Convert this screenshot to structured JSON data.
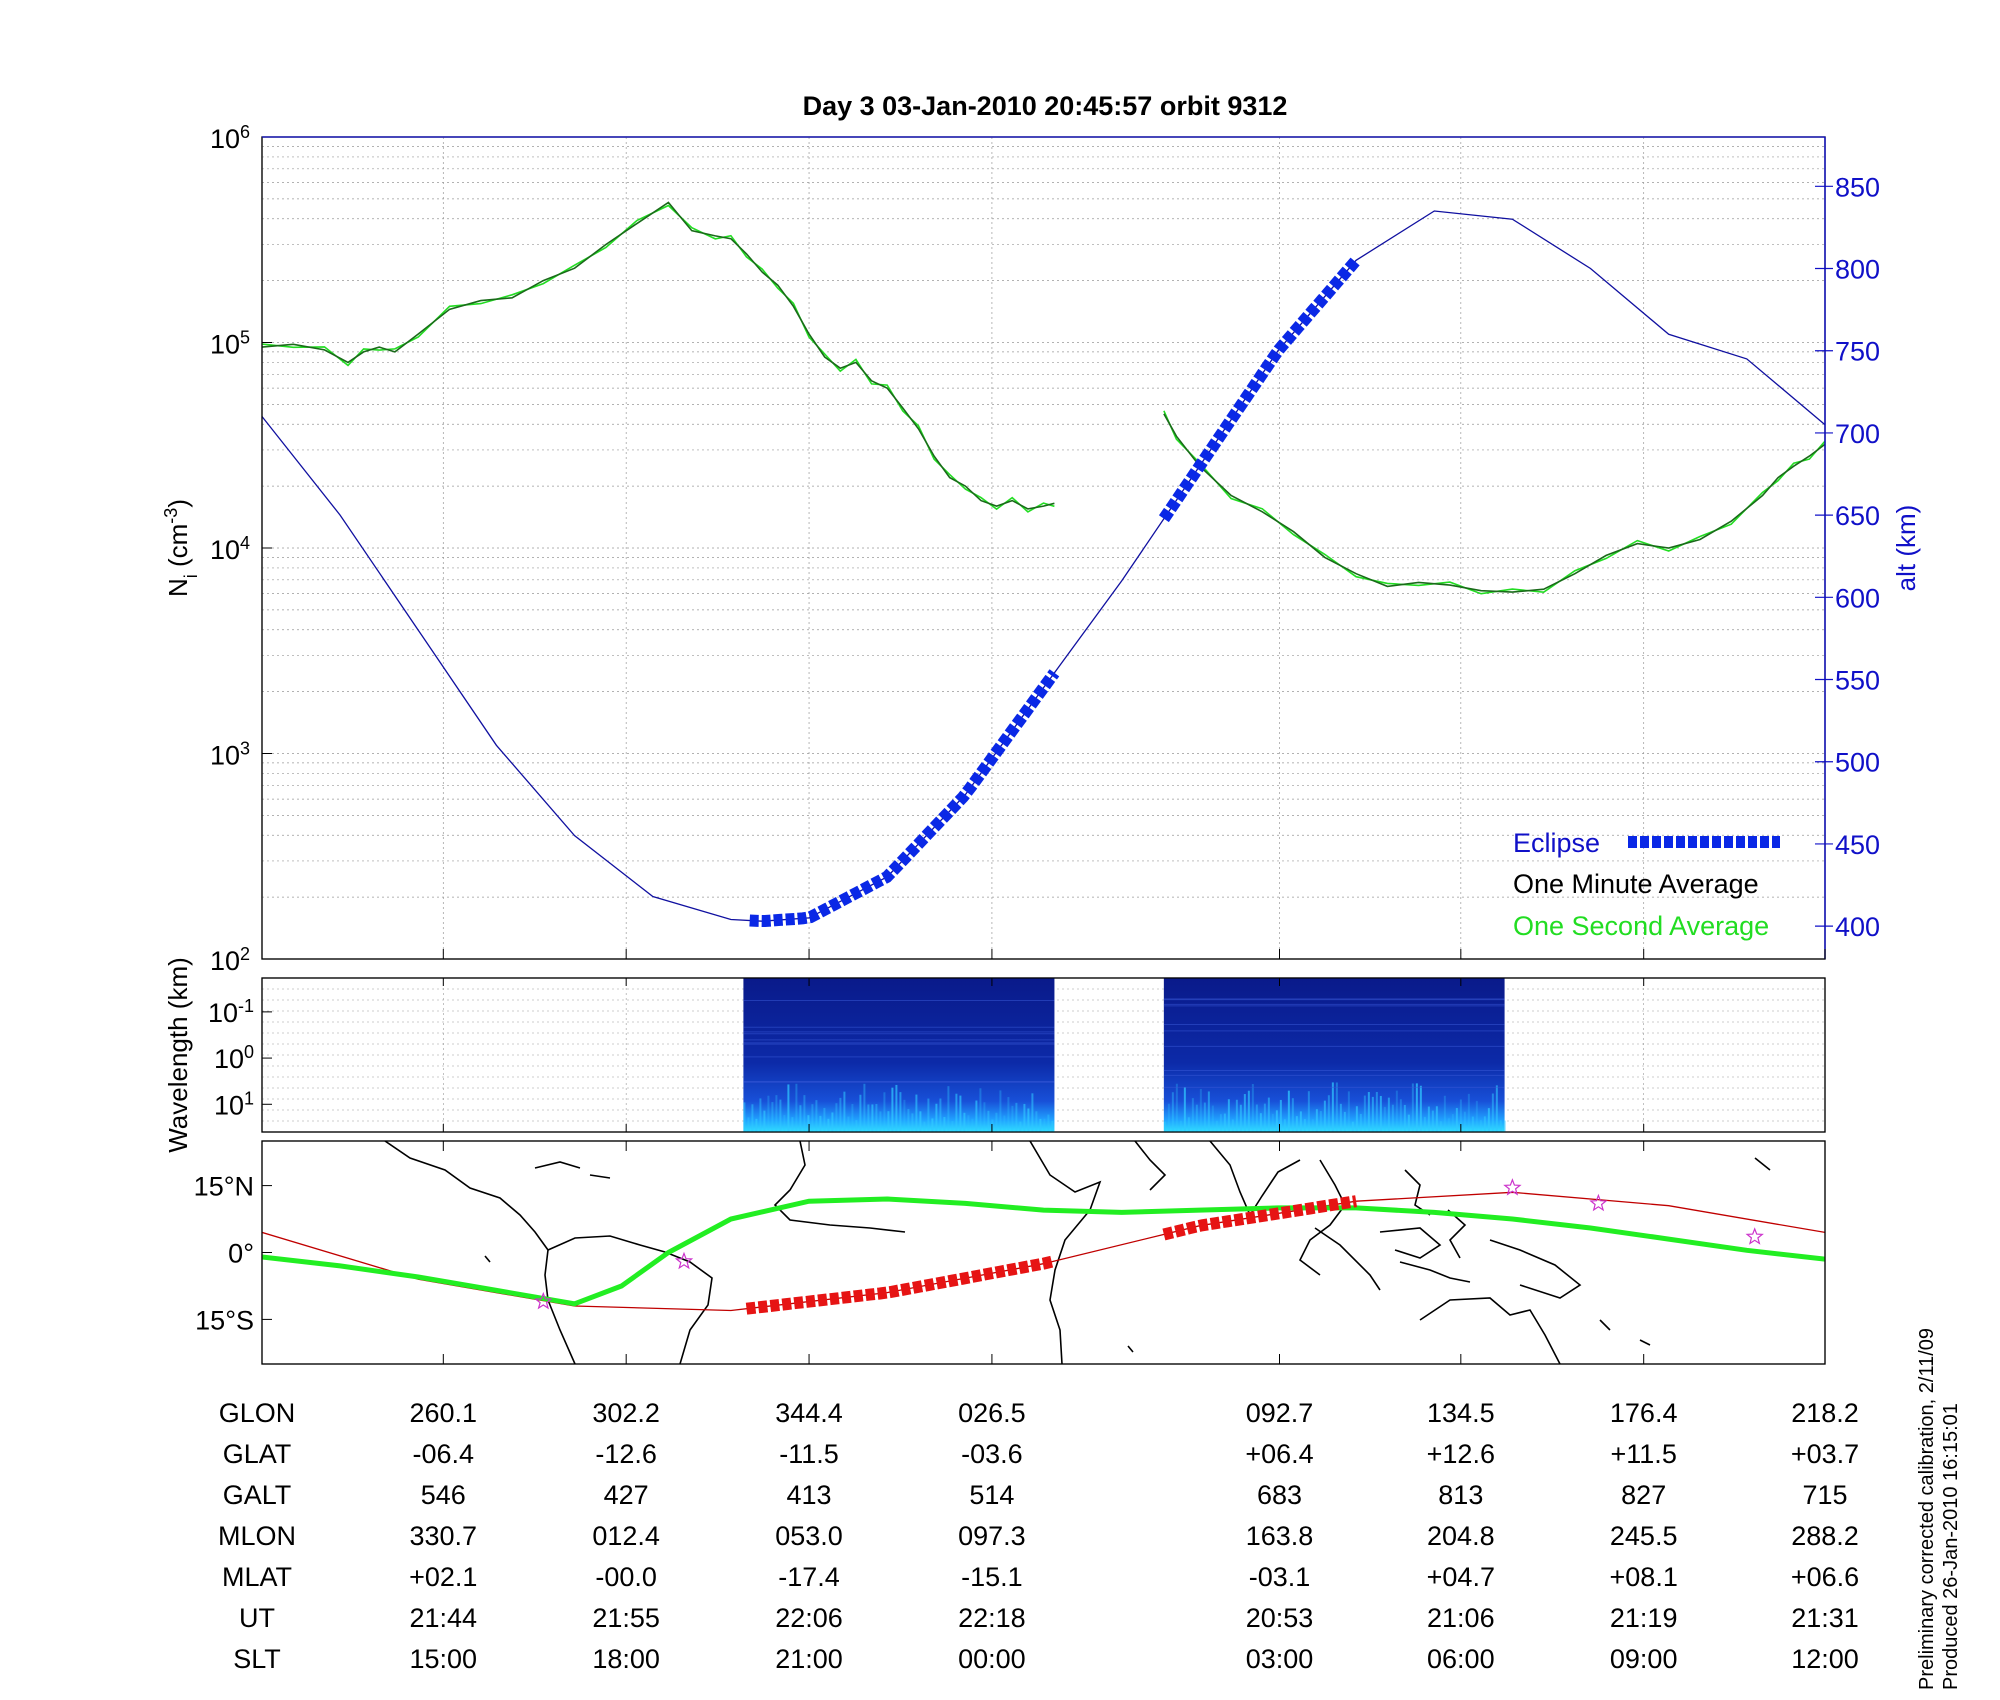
{
  "title": "Day 3  03-Jan-2010 20:45:57   orbit 9312",
  "colors": {
    "ion_density": "#1a7a1a",
    "one_second": "#22dd22",
    "altitude": "#1010a0",
    "eclipse": "#0a28e6",
    "ground_track": "#22ee22",
    "orbit_track": "#c00000",
    "eclipse_track": "#e61414",
    "stars": "#cc33cc",
    "right_axis": "#1010c8"
  },
  "chart_data": [
    {
      "type": "line",
      "panel": "density-altitude",
      "ylabel": "N_i (cm^-3)",
      "ylabel_parts": {
        "base": "N",
        "sub": "i",
        "unit_pre": " (cm",
        "unit_sup": "-3",
        "unit_post": ")"
      },
      "yscale": "log",
      "ylim": [
        100,
        1000000
      ],
      "yticks": [
        {
          "base": "10",
          "exp": "2",
          "value": 100
        },
        {
          "base": "10",
          "exp": "3",
          "value": 1000
        },
        {
          "base": "10",
          "exp": "4",
          "value": 10000
        },
        {
          "base": "10",
          "exp": "5",
          "value": 100000
        },
        {
          "base": "10",
          "exp": "6",
          "value": 1000000
        }
      ],
      "y2label": "alt (km)",
      "y2lim": [
        380,
        880
      ],
      "y2ticks": [
        "400",
        "450",
        "500",
        "550",
        "600",
        "650",
        "700",
        "750",
        "800",
        "850"
      ],
      "grid": true,
      "legend": {
        "position": "bottom-right",
        "entries": [
          "Eclipse",
          "One Minute Average",
          "One Second Average"
        ]
      },
      "segment_break": {
        "from": 0.507,
        "to": 0.577
      },
      "series": [
        {
          "name": "One Minute Average",
          "x": [
            0.0,
            0.02,
            0.04,
            0.055,
            0.065,
            0.075,
            0.085,
            0.1,
            0.12,
            0.14,
            0.16,
            0.18,
            0.2,
            0.22,
            0.24,
            0.26,
            0.275,
            0.29,
            0.3,
            0.31,
            0.32,
            0.33,
            0.34,
            0.35,
            0.36,
            0.37,
            0.38,
            0.39,
            0.4,
            0.41,
            0.42,
            0.43,
            0.44,
            0.45,
            0.46,
            0.47,
            0.48,
            0.49,
            0.5,
            0.507,
            0.577,
            0.585,
            0.6,
            0.62,
            0.64,
            0.66,
            0.68,
            0.7,
            0.72,
            0.74,
            0.76,
            0.78,
            0.8,
            0.82,
            0.84,
            0.86,
            0.88,
            0.9,
            0.92,
            0.94,
            0.96,
            0.97,
            0.98,
            0.99,
            1.0
          ],
          "y": [
            95000,
            98000,
            92000,
            80000,
            90000,
            95000,
            90000,
            110000,
            145000,
            160000,
            165000,
            200000,
            230000,
            300000,
            380000,
            480000,
            350000,
            330000,
            320000,
            270000,
            220000,
            190000,
            150000,
            110000,
            85000,
            75000,
            80000,
            65000,
            60000,
            48000,
            38000,
            28000,
            22000,
            20000,
            17000,
            16000,
            17000,
            15500,
            16000,
            16500,
            45000,
            35000,
            25000,
            18000,
            15000,
            12000,
            9000,
            7500,
            6500,
            6800,
            6600,
            6200,
            6100,
            6300,
            7500,
            9200,
            10500,
            10000,
            11000,
            13500,
            18000,
            22000,
            25000,
            28000,
            32000
          ]
        },
        {
          "name": "altitude",
          "x": [
            0.0,
            0.05,
            0.1,
            0.15,
            0.2,
            0.25,
            0.3,
            0.32,
            0.35,
            0.4,
            0.45,
            0.5,
            0.55,
            0.6,
            0.65,
            0.7,
            0.75,
            0.8,
            0.85,
            0.9,
            0.95,
            1.0
          ],
          "y": [
            710,
            650,
            580,
            510,
            455,
            418,
            404,
            403,
            405,
            430,
            480,
            545,
            610,
            680,
            750,
            805,
            835,
            830,
            800,
            760,
            745,
            705
          ]
        }
      ],
      "eclipse_intervals": [
        [
          0.312,
          0.507
        ],
        [
          0.577,
          0.7
        ]
      ]
    },
    {
      "type": "heatmap",
      "panel": "spectrogram",
      "ylabel": "Wavelength (km)",
      "yscale": "log",
      "yticks": [
        {
          "base": "10",
          "exp": "-1"
        },
        {
          "base": "10",
          "exp": "0"
        },
        {
          "base": "10",
          "exp": "1"
        }
      ],
      "data_intervals": [
        [
          0.308,
          0.507
        ],
        [
          0.577,
          0.795
        ]
      ]
    },
    {
      "type": "line",
      "panel": "ground-track-map",
      "yticks": [
        "15°N",
        "0°",
        "15°S"
      ],
      "ylim": [
        -25,
        25
      ],
      "series": [
        {
          "name": "ground track",
          "x": [
            0.0,
            0.05,
            0.1,
            0.15,
            0.2,
            0.23,
            0.26,
            0.3,
            0.35,
            0.4,
            0.45,
            0.5,
            0.55,
            0.6,
            0.65,
            0.7,
            0.75,
            0.8,
            0.85,
            0.9,
            0.95,
            1.0
          ],
          "y": [
            -1.0,
            -3.0,
            -5.5,
            -8.5,
            -11.5,
            -7.5,
            0.0,
            7.5,
            11.5,
            12.0,
            11.0,
            9.5,
            9.0,
            9.5,
            10.0,
            10.0,
            9.0,
            7.5,
            5.5,
            3.0,
            0.5,
            -1.5
          ]
        },
        {
          "name": "orbit track",
          "x": [
            0.0,
            0.1,
            0.2,
            0.3,
            0.4,
            0.5,
            0.6,
            0.7,
            0.8,
            0.9,
            1.0
          ],
          "y": [
            4.5,
            -6.0,
            -12.0,
            -13.0,
            -9.0,
            -2.5,
            6.0,
            11.5,
            13.5,
            10.5,
            4.5
          ]
        }
      ],
      "eclipse_intervals": [
        [
          0.31,
          0.507
        ],
        [
          0.577,
          0.7
        ]
      ],
      "stars": [
        {
          "x": 0.18,
          "y": -11.0
        },
        {
          "x": 0.27,
          "y": -2.0
        },
        {
          "x": 0.8,
          "y": 14.5
        },
        {
          "x": 0.855,
          "y": 11.0
        },
        {
          "x": 0.955,
          "y": 3.5
        }
      ]
    }
  ],
  "table": {
    "columns": [
      {
        "x": 0.116,
        "values": [
          "260.1",
          "-06.4",
          "546",
          "330.7",
          "+02.1",
          "21:44",
          "15:00"
        ]
      },
      {
        "x": 0.233,
        "values": [
          "302.2",
          "-12.6",
          "427",
          "012.4",
          "-00.0",
          "21:55",
          "18:00"
        ]
      },
      {
        "x": 0.35,
        "values": [
          "344.4",
          "-11.5",
          "413",
          "053.0",
          "-17.4",
          "22:06",
          "21:00"
        ]
      },
      {
        "x": 0.467,
        "values": [
          "026.5",
          "-03.6",
          "514",
          "097.3",
          "-15.1",
          "22:18",
          "00:00"
        ]
      },
      {
        "x": 0.651,
        "values": [
          "092.7",
          "+06.4",
          "683",
          "163.8",
          "-03.1",
          "20:53",
          "03:00"
        ]
      },
      {
        "x": 0.767,
        "values": [
          "134.5",
          "+12.6",
          "813",
          "204.8",
          "+04.7",
          "21:06",
          "06:00"
        ]
      },
      {
        "x": 0.884,
        "values": [
          "176.4",
          "+11.5",
          "827",
          "245.5",
          "+08.1",
          "21:19",
          "09:00"
        ]
      },
      {
        "x": 1.0,
        "values": [
          "218.2",
          "+03.7",
          "715",
          "288.2",
          "+06.6",
          "21:31",
          "12:00"
        ]
      }
    ],
    "rows": [
      {
        "label": "GLON"
      },
      {
        "label": "GLAT"
      },
      {
        "label": "GALT"
      },
      {
        "label": "MLON"
      },
      {
        "label": "MLAT"
      },
      {
        "label": "UT"
      },
      {
        "label": "SLT"
      }
    ]
  },
  "footer": {
    "line1": "Preliminary corrected calibration, 2/11/09",
    "line2": "Produced 26-Jan-2010 16:15:01"
  }
}
